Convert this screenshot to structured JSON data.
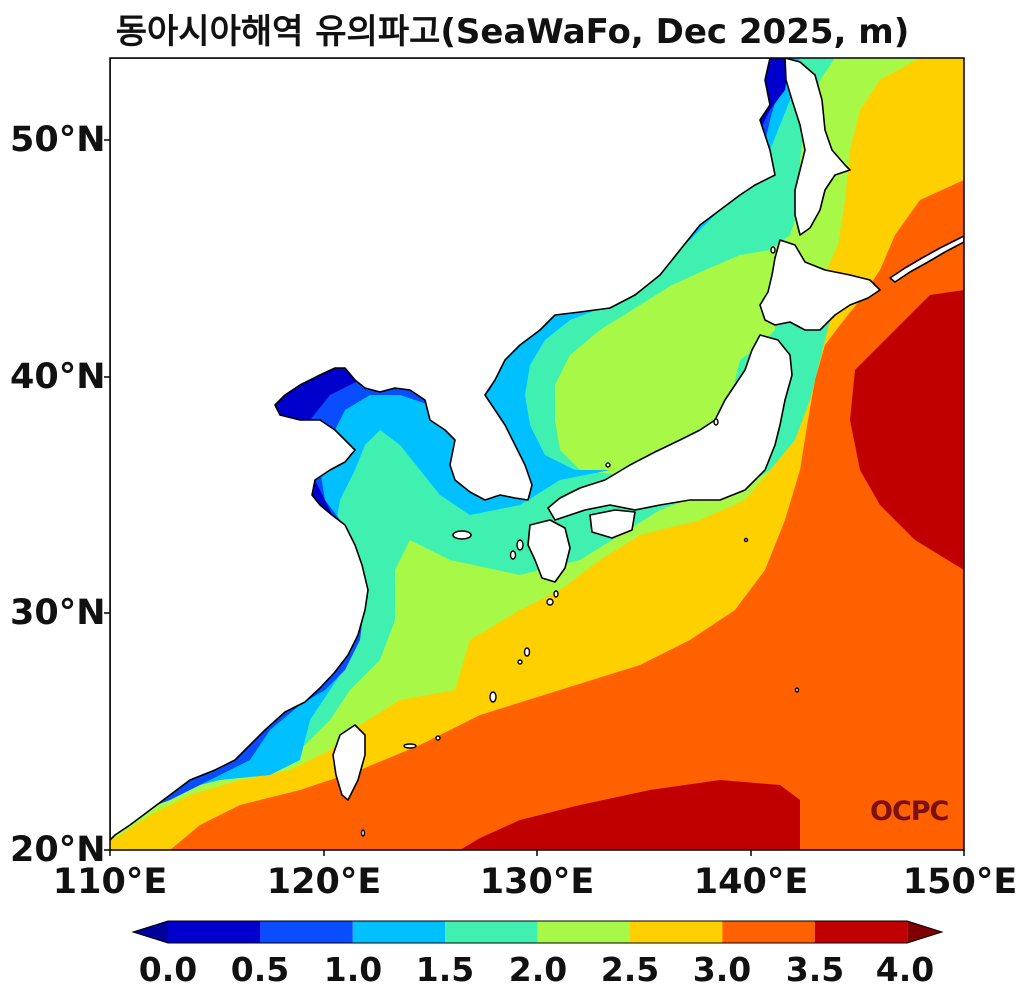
{
  "title": "동아시아해역 유의파고(SeaWaFo, Dec 2025, m)",
  "watermark": "OCPC",
  "axes": {
    "lat_ticks": [
      "20°N",
      "30°N",
      "40°N",
      "50°N"
    ],
    "lon_ticks": [
      "110°E",
      "120°E",
      "130°E",
      "140°E",
      "150°E"
    ]
  },
  "colorbar": {
    "labels": [
      "0.0",
      "0.5",
      "1.0",
      "1.5",
      "2.0",
      "2.5",
      "3.0",
      "3.5",
      "4.0"
    ],
    "colors": [
      "#0000cc",
      "#0a4dff",
      "#00c0ff",
      "#40f0b0",
      "#a0f848",
      "#ffd000",
      "#ff6000",
      "#cc0000",
      "#800000"
    ],
    "under_color": "#00009a",
    "over_color": "#800000"
  },
  "colors": {
    "land": "#ffffff",
    "coastline": "#000000",
    "frame": "#000000"
  }
}
